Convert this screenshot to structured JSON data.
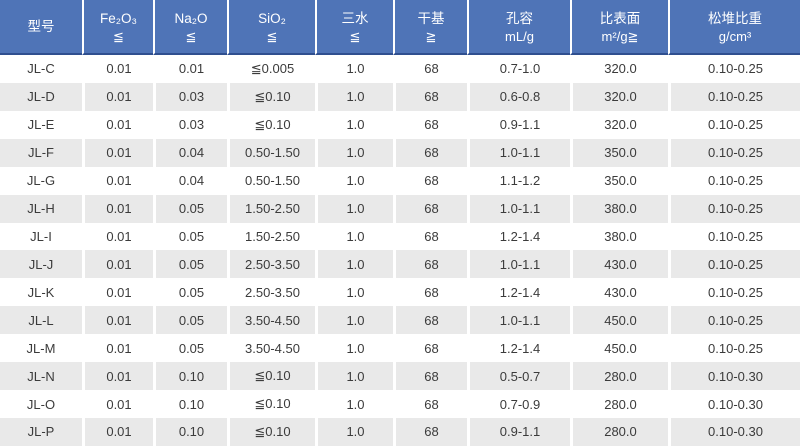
{
  "colors": {
    "header_bg": "#4f74b7",
    "header_text": "#ffffff",
    "header_bottom_border": "#2f4f8f",
    "stripe_row_bg": "#e9e9e9",
    "cell_text": "#3b3b3b",
    "gap": "#ffffff"
  },
  "table": {
    "columns": [
      {
        "id": "model",
        "line1": "型号",
        "line2": ""
      },
      {
        "id": "fe2o3",
        "line1": "Fe₂O₃",
        "line2": "≦"
      },
      {
        "id": "na2o",
        "line1": "Na₂O",
        "line2": "≦"
      },
      {
        "id": "sio2",
        "line1": "SiO₂",
        "line2": "≦"
      },
      {
        "id": "trihydrate",
        "line1": "三水",
        "line2": "≦"
      },
      {
        "id": "dry-basis",
        "line1": "干基",
        "line2": "≧"
      },
      {
        "id": "pore-volume",
        "line1": "孔容",
        "line2": "mL/g"
      },
      {
        "id": "surface-area",
        "line1": "比表面",
        "line2": "m²/g≧"
      },
      {
        "id": "bulk-density",
        "line1": "松堆比重",
        "line2": "g/cm³"
      }
    ],
    "rows": [
      [
        "JL-C",
        "0.01",
        "0.01",
        "≦0.005",
        "1.0",
        "68",
        "0.7-1.0",
        "320.0",
        "0.10-0.25"
      ],
      [
        "JL-D",
        "0.01",
        "0.03",
        "≦0.10",
        "1.0",
        "68",
        "0.6-0.8",
        "320.0",
        "0.10-0.25"
      ],
      [
        "JL-E",
        "0.01",
        "0.03",
        "≦0.10",
        "1.0",
        "68",
        "0.9-1.1",
        "320.0",
        "0.10-0.25"
      ],
      [
        "JL-F",
        "0.01",
        "0.04",
        "0.50-1.50",
        "1.0",
        "68",
        "1.0-1.1",
        "350.0",
        "0.10-0.25"
      ],
      [
        "JL-G",
        "0.01",
        "0.04",
        "0.50-1.50",
        "1.0",
        "68",
        "1.1-1.2",
        "350.0",
        "0.10-0.25"
      ],
      [
        "JL-H",
        "0.01",
        "0.05",
        "1.50-2.50",
        "1.0",
        "68",
        "1.0-1.1",
        "380.0",
        "0.10-0.25"
      ],
      [
        "JL-I",
        "0.01",
        "0.05",
        "1.50-2.50",
        "1.0",
        "68",
        "1.2-1.4",
        "380.0",
        "0.10-0.25"
      ],
      [
        "JL-J",
        "0.01",
        "0.05",
        "2.50-3.50",
        "1.0",
        "68",
        "1.0-1.1",
        "430.0",
        "0.10-0.25"
      ],
      [
        "JL-K",
        "0.01",
        "0.05",
        "2.50-3.50",
        "1.0",
        "68",
        "1.2-1.4",
        "430.0",
        "0.10-0.25"
      ],
      [
        "JL-L",
        "0.01",
        "0.05",
        "3.50-4.50",
        "1.0",
        "68",
        "1.0-1.1",
        "450.0",
        "0.10-0.25"
      ],
      [
        "JL-M",
        "0.01",
        "0.05",
        "3.50-4.50",
        "1.0",
        "68",
        "1.2-1.4",
        "450.0",
        "0.10-0.25"
      ],
      [
        "JL-N",
        "0.01",
        "0.10",
        "≦0.10",
        "1.0",
        "68",
        "0.5-0.7",
        "280.0",
        "0.10-0.30"
      ],
      [
        "JL-O",
        "0.01",
        "0.10",
        "≦0.10",
        "1.0",
        "68",
        "0.7-0.9",
        "280.0",
        "0.10-0.30"
      ],
      [
        "JL-P",
        "0.01",
        "0.10",
        "≦0.10",
        "1.0",
        "68",
        "0.9-1.1",
        "280.0",
        "0.10-0.30"
      ]
    ]
  }
}
